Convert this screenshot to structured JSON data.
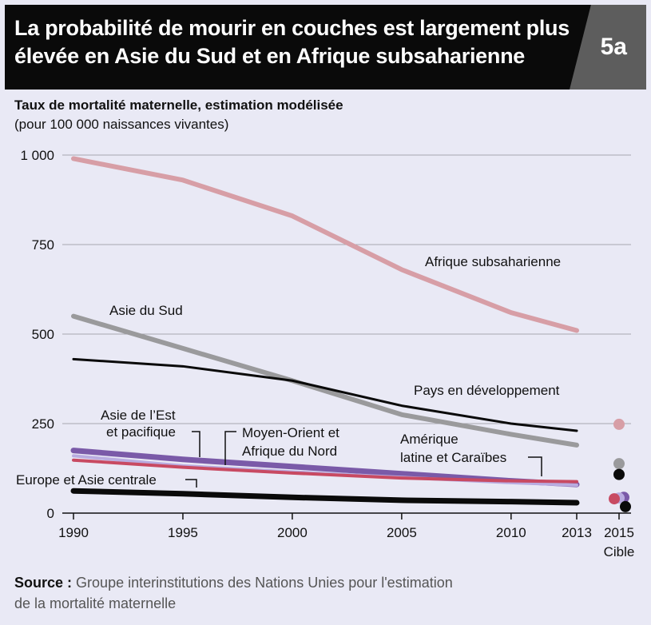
{
  "header": {
    "title_line1": "La probabilité de mourir en couches est largement plus",
    "title_line2": "élevée en Asie du Sud et en Afrique subsaharienne",
    "badge": "5a"
  },
  "subtitle": "Taux de mortalité maternelle, estimation modélisée",
  "subtitle2": "(pour 100 000 naissances vivantes)",
  "source": {
    "label": "Source :",
    "text_line1": "Groupe interinstitutions des Nations Unies pour l'estimation",
    "text_line2": "de la mortalité maternelle"
  },
  "chart_data": {
    "type": "line",
    "x": [
      1990,
      1995,
      2000,
      2005,
      2010,
      2013
    ],
    "xticks": [
      "1990",
      "1995",
      "2000",
      "2005",
      "2010",
      "2013"
    ],
    "target_tick": [
      "2015",
      "Cible"
    ],
    "yticks": [
      "0",
      "250",
      "500",
      "750",
      "1 000"
    ],
    "ytick_values": [
      0,
      250,
      500,
      750,
      1000
    ],
    "ylim": [
      0,
      1000
    ],
    "grid": true,
    "series": [
      {
        "name": "Afrique subsaharienne",
        "color": "#d79ea6",
        "width": 6,
        "values": [
          990,
          930,
          830,
          680,
          560,
          510
        ],
        "target": 248,
        "target_color": "#d79ea6"
      },
      {
        "name": "Asie du Sud",
        "color": "#9a9a9c",
        "width": 6,
        "values": [
          550,
          460,
          370,
          275,
          220,
          190
        ],
        "target": 138,
        "target_color": "#9a9a9c"
      },
      {
        "name": "Pays en développement",
        "color": "#0a0a0a",
        "width": 3,
        "values": [
          430,
          410,
          370,
          300,
          250,
          230
        ],
        "target": 108,
        "target_color": "#0a0a0a"
      },
      {
        "name": "Asie de l’Est et pacifique",
        "color": "#7a5aa8",
        "width": 7,
        "values": [
          175,
          150,
          130,
          110,
          90,
          80
        ],
        "target": 44,
        "target_color": "#7a5aa8"
      },
      {
        "name": "Moyen-Orient et Afrique du Nord",
        "color": "#b9ace0",
        "width": 4,
        "values": [
          160,
          132,
          115,
          100,
          85,
          78
        ],
        "target": 42,
        "target_color": "#b9ace0"
      },
      {
        "name": "Amérique latine et Caraïbes",
        "color": "#c84a62",
        "width": 4,
        "values": [
          148,
          128,
          112,
          98,
          90,
          88
        ],
        "target": 40,
        "target_color": "#c84a62"
      },
      {
        "name": "Europe et Asie centrale",
        "color": "#0a0a0a",
        "width": 7,
        "values": [
          62,
          54,
          44,
          36,
          32,
          29
        ],
        "target": 18,
        "target_color": "#0a0a0a"
      }
    ],
    "labels": {
      "ssa": "Afrique subsaharienne",
      "sa": "Asie du Sud",
      "dev": "Pays en développement",
      "eap1": "Asie de l’Est",
      "eap2": "et pacifique",
      "mena1": "Moyen-Orient et",
      "mena2": "Afrique du Nord",
      "lac1": "Amérique",
      "lac2": "latine et Caraïbes",
      "eca": "Europe et Asie centrale"
    }
  }
}
